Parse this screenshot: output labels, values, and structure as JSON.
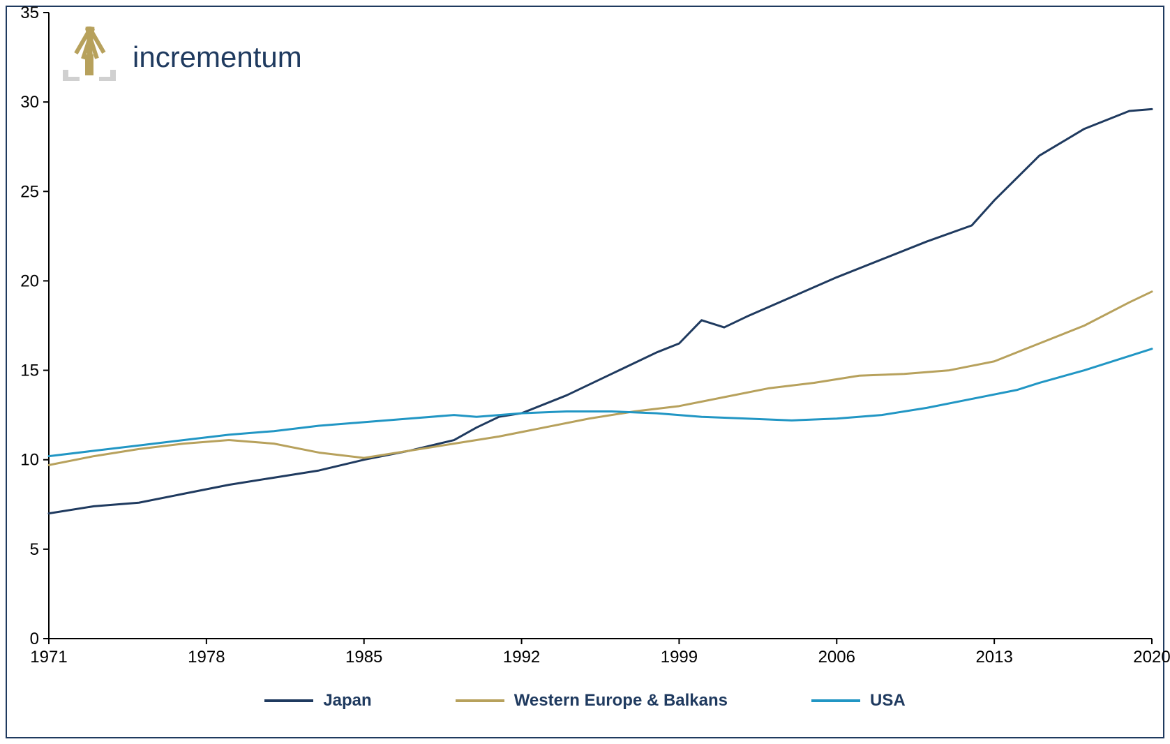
{
  "chart": {
    "type": "line",
    "background_color": "#ffffff",
    "border_color": "#1f3a5f",
    "border_width": 2,
    "axis_color": "#000000",
    "axis_width": 2,
    "tick_font_size": 24,
    "tick_color": "#000000",
    "ylim": [
      0,
      35
    ],
    "yticks": [
      0,
      5,
      10,
      15,
      20,
      25,
      30,
      35
    ],
    "xdomain": [
      1971,
      2020
    ],
    "xticks": [
      1971,
      1978,
      1985,
      1992,
      1999,
      2006,
      2013,
      2020
    ],
    "line_width": 3,
    "series": [
      {
        "name": "Japan",
        "label": "Japan",
        "color": "#1f3a5f",
        "points": [
          [
            1971,
            7.0
          ],
          [
            1973,
            7.4
          ],
          [
            1975,
            7.6
          ],
          [
            1977,
            8.1
          ],
          [
            1979,
            8.6
          ],
          [
            1981,
            9.0
          ],
          [
            1983,
            9.4
          ],
          [
            1985,
            10.0
          ],
          [
            1987,
            10.5
          ],
          [
            1989,
            11.1
          ],
          [
            1990,
            11.8
          ],
          [
            1991,
            12.4
          ],
          [
            1992,
            12.6
          ],
          [
            1994,
            13.6
          ],
          [
            1996,
            14.8
          ],
          [
            1998,
            16.0
          ],
          [
            1999,
            16.5
          ],
          [
            2000,
            17.8
          ],
          [
            2001,
            17.4
          ],
          [
            2002,
            18.0
          ],
          [
            2004,
            19.1
          ],
          [
            2006,
            20.2
          ],
          [
            2008,
            21.2
          ],
          [
            2010,
            22.2
          ],
          [
            2012,
            23.1
          ],
          [
            2013,
            24.5
          ],
          [
            2015,
            27.0
          ],
          [
            2017,
            28.5
          ],
          [
            2019,
            29.5
          ],
          [
            2020,
            29.6
          ]
        ]
      },
      {
        "name": "Western Europe & Balkans",
        "label": "Western Europe & Balkans",
        "color": "#b7a15c",
        "points": [
          [
            1971,
            9.7
          ],
          [
            1973,
            10.2
          ],
          [
            1975,
            10.6
          ],
          [
            1977,
            10.9
          ],
          [
            1979,
            11.1
          ],
          [
            1981,
            10.9
          ],
          [
            1983,
            10.4
          ],
          [
            1985,
            10.1
          ],
          [
            1987,
            10.5
          ],
          [
            1989,
            10.9
          ],
          [
            1991,
            11.3
          ],
          [
            1993,
            11.8
          ],
          [
            1995,
            12.3
          ],
          [
            1997,
            12.7
          ],
          [
            1999,
            13.0
          ],
          [
            2001,
            13.5
          ],
          [
            2003,
            14.0
          ],
          [
            2005,
            14.3
          ],
          [
            2007,
            14.7
          ],
          [
            2009,
            14.8
          ],
          [
            2011,
            15.0
          ],
          [
            2013,
            15.5
          ],
          [
            2015,
            16.5
          ],
          [
            2017,
            17.5
          ],
          [
            2019,
            18.8
          ],
          [
            2020,
            19.4
          ]
        ]
      },
      {
        "name": "USA",
        "label": "USA",
        "color": "#2196c4",
        "points": [
          [
            1971,
            10.2
          ],
          [
            1973,
            10.5
          ],
          [
            1975,
            10.8
          ],
          [
            1977,
            11.1
          ],
          [
            1979,
            11.4
          ],
          [
            1981,
            11.6
          ],
          [
            1983,
            11.9
          ],
          [
            1985,
            12.1
          ],
          [
            1987,
            12.3
          ],
          [
            1989,
            12.5
          ],
          [
            1990,
            12.4
          ],
          [
            1992,
            12.6
          ],
          [
            1994,
            12.7
          ],
          [
            1996,
            12.7
          ],
          [
            1998,
            12.6
          ],
          [
            2000,
            12.4
          ],
          [
            2002,
            12.3
          ],
          [
            2004,
            12.2
          ],
          [
            2006,
            12.3
          ],
          [
            2008,
            12.5
          ],
          [
            2010,
            12.9
          ],
          [
            2012,
            13.4
          ],
          [
            2014,
            13.9
          ],
          [
            2015,
            14.3
          ],
          [
            2017,
            15.0
          ],
          [
            2019,
            15.8
          ],
          [
            2020,
            16.2
          ]
        ]
      }
    ],
    "legend": {
      "font_size": 24,
      "font_weight": "bold",
      "text_color": "#1f3a5f",
      "line_length": 70,
      "line_width": 4
    },
    "logo": {
      "text": "incrementum",
      "text_color": "#1f3a5f",
      "icon_color": "#b7a15c",
      "icon_base_color": "#d0d0d0",
      "font_size": 42
    }
  }
}
